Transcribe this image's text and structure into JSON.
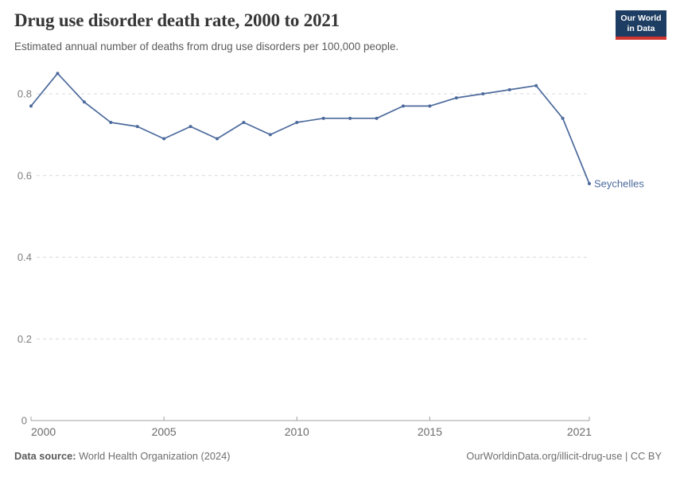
{
  "header": {
    "title": "Drug use disorder death rate, 2000 to 2021",
    "subtitle": "Estimated annual number of deaths from drug use disorders per 100,000 people.",
    "logo": {
      "line1": "Our World",
      "line2": "in Data"
    }
  },
  "chart_data": {
    "type": "line",
    "title": "Drug use disorder death rate, 2000 to 2021",
    "subtitle": "Estimated annual number of deaths from drug use disorders per 100,000 people.",
    "xlabel": "",
    "ylabel": "",
    "xlim": [
      2000,
      2021
    ],
    "ylim": [
      0,
      0.88
    ],
    "x_ticks": [
      2000,
      2005,
      2010,
      2015,
      2021
    ],
    "y_ticks": [
      0,
      0.2,
      0.4,
      0.6,
      0.8
    ],
    "grid": "horizontal dashed",
    "legend_position": "end-of-line label",
    "series": [
      {
        "name": "Seychelles",
        "color": "#4C6A9C",
        "x": [
          2000,
          2001,
          2002,
          2003,
          2004,
          2005,
          2006,
          2007,
          2008,
          2009,
          2010,
          2011,
          2012,
          2013,
          2014,
          2015,
          2016,
          2017,
          2018,
          2019,
          2020,
          2021
        ],
        "values": [
          0.77,
          0.85,
          0.78,
          0.73,
          0.72,
          0.69,
          0.72,
          0.69,
          0.73,
          0.7,
          0.73,
          0.74,
          0.74,
          0.74,
          0.77,
          0.77,
          0.79,
          0.8,
          0.81,
          0.82,
          0.74,
          0.58
        ]
      }
    ]
  },
  "footer": {
    "source_label": "Data source:",
    "source_text": " World Health Organization (2024)",
    "credit": "OurWorldinData.org/illicit-drug-use | CC BY"
  },
  "colors": {
    "line": "#4C6A9C",
    "grid": "#d9d9d9",
    "axis": "#a0a0a0",
    "y_tick_label": "#7d7d7d",
    "x_tick_label": "#6b6b6b",
    "title": "#373737",
    "subtitle": "#5b5b5b",
    "logo_bg": "#1d3d63",
    "logo_accent": "#d0342f"
  }
}
